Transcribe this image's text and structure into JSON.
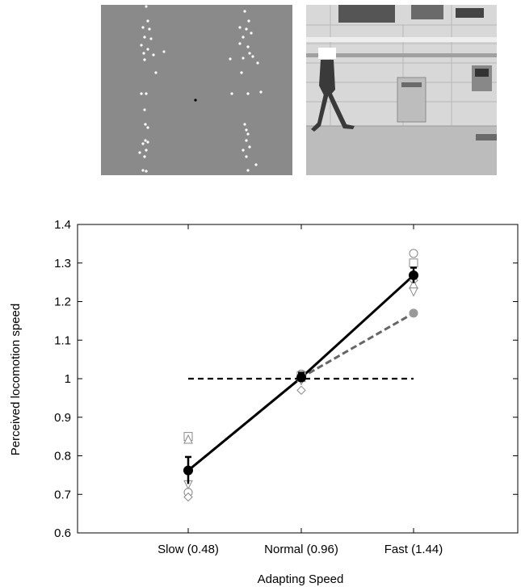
{
  "stimuli": {
    "point_light": {
      "dot_color": "#ffffff",
      "fixation_color": "#000000",
      "background": "#8a8a8a"
    },
    "photo": {
      "description_icon": "walking-person-photo"
    }
  },
  "chart_data": {
    "type": "line",
    "xlabel": "Adapting Speed",
    "ylabel": "Perceived locomotion speed",
    "categories": [
      "Slow (0.48)",
      "Normal (0.96)",
      "Fast (1.44)"
    ],
    "ylim": [
      0.6,
      1.4
    ],
    "yticks": [
      0.6,
      0.7,
      0.8,
      0.9,
      1.0,
      1.1,
      1.2,
      1.3,
      1.4
    ],
    "ytick_labels": [
      "0.6",
      "0.7",
      "0.8",
      "0.9",
      "1",
      "1.1",
      "1.2",
      "1.3",
      "1.4"
    ],
    "reference_line": {
      "y": 1.0,
      "style": "dashed",
      "color": "#000000"
    },
    "series": [
      {
        "style": "solid",
        "color": "#000000",
        "marker": "filled-circle",
        "values": [
          0.762,
          1.003,
          1.268
        ],
        "errors": [
          0.035,
          0.012,
          0.02
        ]
      },
      {
        "style": "dashed",
        "color": "#666666",
        "marker": "filled-circle-gray",
        "values": [
          0.762,
          1.003,
          1.17
        ]
      }
    ],
    "individual_points": [
      {
        "x": 0,
        "y": 0.85,
        "marker": "square"
      },
      {
        "x": 0,
        "y": 0.843,
        "marker": "triangle-up"
      },
      {
        "x": 0,
        "y": 0.725,
        "marker": "triangle-down"
      },
      {
        "x": 0,
        "y": 0.705,
        "marker": "circle"
      },
      {
        "x": 0,
        "y": 0.693,
        "marker": "diamond"
      },
      {
        "x": 1,
        "y": 1.012,
        "marker": "circle"
      },
      {
        "x": 1,
        "y": 1.008,
        "marker": "square"
      },
      {
        "x": 1,
        "y": 1.003,
        "marker": "triangle-up"
      },
      {
        "x": 1,
        "y": 0.995,
        "marker": "triangle-down"
      },
      {
        "x": 1,
        "y": 0.97,
        "marker": "diamond"
      },
      {
        "x": 2,
        "y": 1.325,
        "marker": "circle"
      },
      {
        "x": 2,
        "y": 1.3,
        "marker": "square"
      },
      {
        "x": 2,
        "y": 1.255,
        "marker": "diamond"
      },
      {
        "x": 2,
        "y": 1.245,
        "marker": "triangle-up"
      },
      {
        "x": 2,
        "y": 1.225,
        "marker": "triangle-down"
      }
    ]
  }
}
